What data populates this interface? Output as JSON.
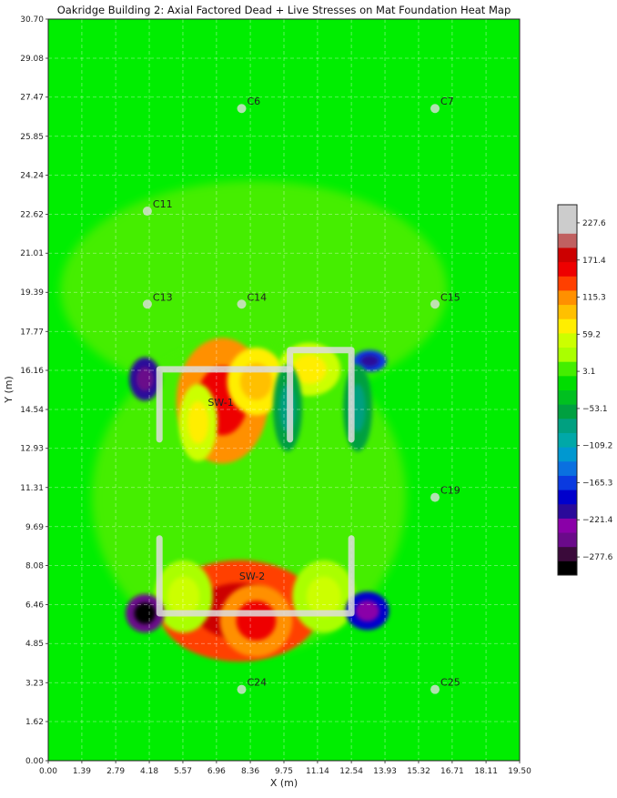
{
  "chart_data": {
    "type": "heatmap",
    "title": "Oakridge Building 2: Axial Factored Dead + Live Stresses on Mat Foundation Heat Map",
    "xlabel": "X (m)",
    "ylabel": "Y (m)",
    "xlim": [
      0,
      19.5
    ],
    "ylim": [
      0,
      30.7
    ],
    "xticks": [
      "0.00",
      "1.39",
      "2.79",
      "4.18",
      "5.57",
      "6.96",
      "8.36",
      "9.75",
      "11.14",
      "12.54",
      "13.93",
      "15.32",
      "16.71",
      "18.11",
      "19.50"
    ],
    "yticks": [
      "0.00",
      "1.62",
      "3.23",
      "4.85",
      "6.46",
      "8.08",
      "9.69",
      "11.31",
      "12.93",
      "14.54",
      "16.16",
      "17.77",
      "19.39",
      "21.01",
      "22.62",
      "24.24",
      "25.85",
      "27.47",
      "29.08",
      "30.70"
    ],
    "grid": true,
    "colorbar": {
      "vmin": -305,
      "vmax": 255,
      "ticks": [
        {
          "value": 227.6,
          "label": "227.6"
        },
        {
          "value": 171.4,
          "label": "171.4"
        },
        {
          "value": 115.3,
          "label": "115.3"
        },
        {
          "value": 59.2,
          "label": "59.2"
        },
        {
          "value": 3.1,
          "label": "3.1"
        },
        {
          "value": -53.1,
          "label": "−53.1"
        },
        {
          "value": -109.2,
          "label": "−109.2"
        },
        {
          "value": -165.3,
          "label": "−165.3"
        },
        {
          "value": -221.4,
          "label": "−221.4"
        },
        {
          "value": -277.6,
          "label": "−277.6"
        }
      ],
      "colors": [
        "#000000",
        "#3a0a3a",
        "#6a0a8a",
        "#8a00a8",
        "#2a0a9a",
        "#0000cc",
        "#0a3ae0",
        "#0a70e0",
        "#0098d0",
        "#00a8a8",
        "#00a080",
        "#00a040",
        "#00c020",
        "#00dd00",
        "#44ee00",
        "#aaff00",
        "#ccff00",
        "#ffee00",
        "#ffc000",
        "#ff9000",
        "#ff4000",
        "#ee0000",
        "#cc0000",
        "#c06060",
        "#cccccc",
        "#cccccc"
      ]
    },
    "columns": [
      {
        "label": "C6",
        "x": 8.0,
        "y": 27.0
      },
      {
        "label": "C7",
        "x": 16.0,
        "y": 27.0
      },
      {
        "label": "C11",
        "x": 4.1,
        "y": 22.75
      },
      {
        "label": "C13",
        "x": 4.1,
        "y": 18.9
      },
      {
        "label": "C14",
        "x": 8.0,
        "y": 18.9
      },
      {
        "label": "C15",
        "x": 16.0,
        "y": 18.9
      },
      {
        "label": "C19",
        "x": 16.0,
        "y": 10.9
      },
      {
        "label": "C24",
        "x": 8.0,
        "y": 2.95
      },
      {
        "label": "C25",
        "x": 16.0,
        "y": 2.95
      }
    ],
    "walls": [
      {
        "label": "SW-1",
        "label_x": 6.6,
        "label_y": 14.7,
        "segments": [
          [
            [
              4.6,
              13.3
            ],
            [
              4.6,
              16.2
            ],
            [
              10.0,
              16.2
            ]
          ],
          [
            [
              10.0,
              13.3
            ],
            [
              10.0,
              17.0
            ],
            [
              12.54,
              17.0
            ],
            [
              12.54,
              13.3
            ]
          ]
        ]
      },
      {
        "label": "SW-2",
        "label_x": 7.9,
        "label_y": 7.5,
        "segments": [
          [
            [
              4.6,
              9.2
            ],
            [
              4.6,
              6.1
            ],
            [
              12.54,
              6.1
            ],
            [
              12.54,
              9.2
            ]
          ]
        ]
      }
    ],
    "stress_hotspots": [
      {
        "x": 7.2,
        "y": 14.9,
        "rx": 1.9,
        "ry": 2.6,
        "value": 125
      },
      {
        "x": 8.6,
        "y": 15.7,
        "rx": 1.2,
        "ry": 1.4,
        "value": 70
      },
      {
        "x": 6.2,
        "y": 14.0,
        "rx": 0.8,
        "ry": 1.6,
        "value": 50
      },
      {
        "x": 10.8,
        "y": 16.2,
        "rx": 1.3,
        "ry": 1.1,
        "value": 55
      },
      {
        "x": 7.9,
        "y": 6.2,
        "rx": 3.3,
        "ry": 2.1,
        "value": 135
      },
      {
        "x": 8.6,
        "y": 5.8,
        "rx": 1.5,
        "ry": 1.5,
        "value": 120
      },
      {
        "x": 11.4,
        "y": 6.8,
        "rx": 1.3,
        "ry": 1.5,
        "value": 35
      },
      {
        "x": 5.6,
        "y": 6.8,
        "rx": 1.2,
        "ry": 1.5,
        "value": 35
      },
      {
        "x": 4.0,
        "y": 15.8,
        "rx": 0.65,
        "ry": 0.9,
        "value": -200
      },
      {
        "x": 13.3,
        "y": 16.55,
        "rx": 0.7,
        "ry": 0.45,
        "value": -170
      },
      {
        "x": 4.0,
        "y": 6.1,
        "rx": 0.8,
        "ry": 0.8,
        "value": -250
      },
      {
        "x": 13.2,
        "y": 6.2,
        "rx": 0.9,
        "ry": 0.8,
        "value": -190
      },
      {
        "x": 9.9,
        "y": 14.6,
        "rx": 0.6,
        "ry": 1.8,
        "value": -60
      },
      {
        "x": 12.8,
        "y": 14.6,
        "rx": 0.6,
        "ry": 1.8,
        "value": -55
      },
      {
        "x": 8.3,
        "y": 10.9,
        "rx": 6.5,
        "ry": 6.5,
        "value": 16
      },
      {
        "x": 8.5,
        "y": 19.5,
        "rx": 8.0,
        "ry": 4.5,
        "value": 8
      }
    ]
  }
}
